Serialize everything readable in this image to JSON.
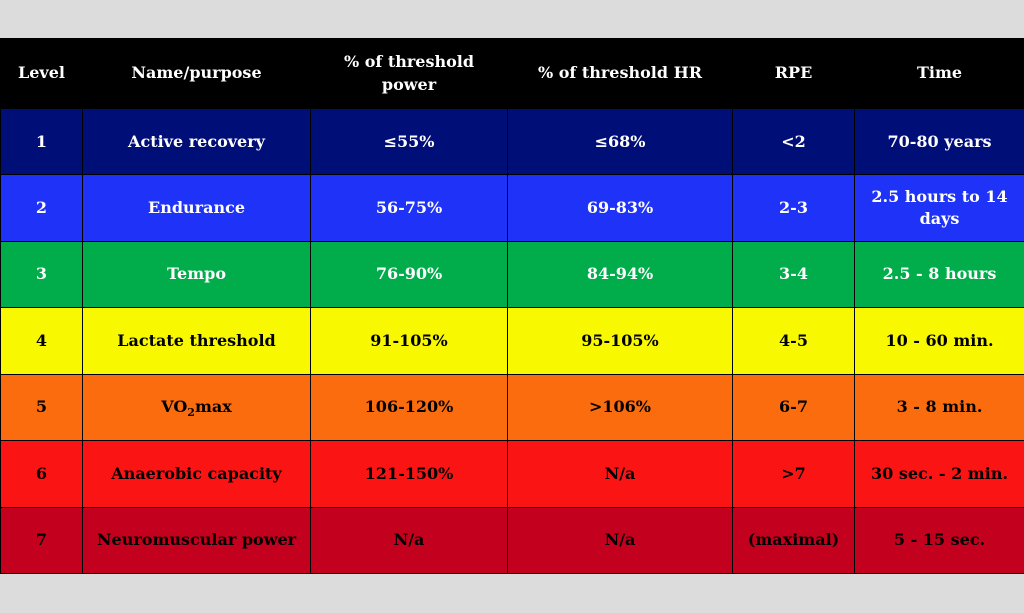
{
  "table": {
    "headers": {
      "level": "Level",
      "name": "Name/purpose",
      "power": "% of threshold power",
      "hr": "% of threshold HR",
      "rpe": "RPE",
      "time": "Time"
    },
    "rows": [
      {
        "level": "1",
        "name": "Active recovery",
        "power": "≤55%",
        "hr": "≤68%",
        "rpe": "<2",
        "time": "70-80 years",
        "bg": "#000e78",
        "fg": "#ffffff"
      },
      {
        "level": "2",
        "name": "Endurance",
        "power": "56-75%",
        "hr": "69-83%",
        "rpe": "2-3",
        "time": "2.5 hours to 14 days",
        "bg": "#1f32f7",
        "fg": "#ffffff"
      },
      {
        "level": "3",
        "name": "Tempo",
        "power": "76-90%",
        "hr": "84-94%",
        "rpe": "3-4",
        "time": "2.5 - 8 hours",
        "bg": "#00ad4a",
        "fg": "#ffffff"
      },
      {
        "level": "4",
        "name": "Lactate threshold",
        "power": "91-105%",
        "hr": "95-105%",
        "rpe": "4-5",
        "time": "10 - 60 min.",
        "bg": "#f8f900",
        "fg": "#000000"
      },
      {
        "level": "5",
        "name_prefix": "VO",
        "name_sub": "2",
        "name_suffix": "max",
        "power": "106-120%",
        "hr": ">106%",
        "rpe": "6-7",
        "time": "3 - 8 min.",
        "bg": "#fa6c0e",
        "fg": "#000000"
      },
      {
        "level": "6",
        "name": "Anaerobic capacity",
        "power": "121-150%",
        "hr": "N/a",
        "rpe": ">7",
        "time": "30 sec. - 2 min.",
        "bg": "#fb1414",
        "fg": "#000000"
      },
      {
        "level": "7",
        "name": "Neuromuscular power",
        "power": "N/a",
        "hr": "N/a",
        "rpe": "(maximal)",
        "time": "5 - 15 sec.",
        "bg": "#c3001d",
        "fg": "#000000"
      }
    ]
  }
}
